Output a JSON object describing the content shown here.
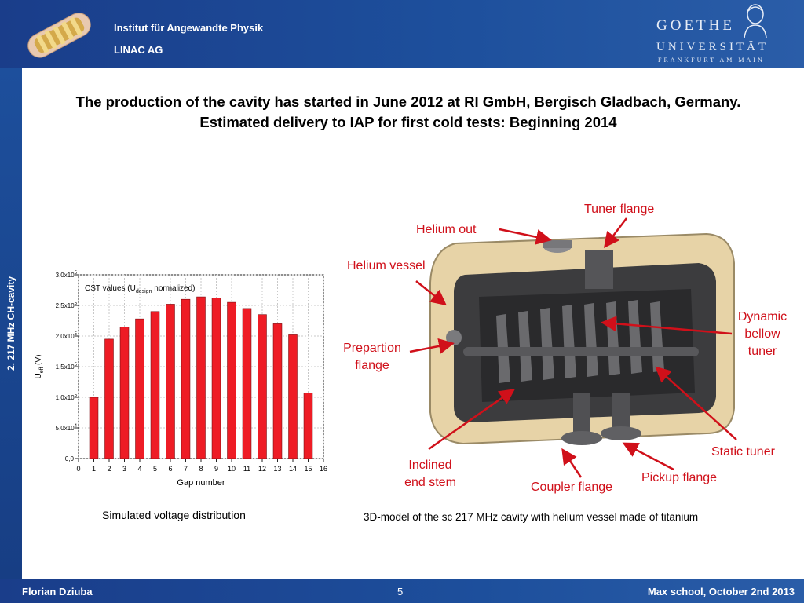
{
  "header": {
    "institute": "Institut für Angewandte Physik",
    "group": "LINAC AG",
    "university_name": "GOETHE",
    "university_word": "UNIVERSITÄT",
    "university_city": "FRANKFURT AM MAIN"
  },
  "sidebar": {
    "label": "2. 217 MHz CH-cavity"
  },
  "title": {
    "line1": "The production of the cavity has started in June 2012 at RI GmbH, Bergisch Gladbach, Germany.",
    "line2": "Estimated delivery to IAP for first cold tests: Beginning 2014"
  },
  "chart_data": {
    "type": "bar",
    "legend": "CST values (U",
    "legend_sub": "design",
    "legend_tail": " normalized)",
    "xlabel": "Gap number",
    "ylabel_main": "U",
    "ylabel_sub": "eff",
    "ylabel_unit": " (V)",
    "x": [
      1,
      2,
      3,
      4,
      5,
      6,
      7,
      8,
      9,
      10,
      11,
      12,
      13,
      14,
      15
    ],
    "values": [
      100000,
      195000,
      215000,
      228000,
      240000,
      252000,
      260000,
      264000,
      262000,
      255000,
      245000,
      235000,
      220000,
      202000,
      107000
    ],
    "xlim": [
      0,
      16
    ],
    "ylim": [
      0,
      300000
    ],
    "xticks": [
      "0",
      "1",
      "2",
      "3",
      "4",
      "5",
      "6",
      "7",
      "8",
      "9",
      "10",
      "11",
      "12",
      "13",
      "14",
      "15",
      "16"
    ],
    "yticks": [
      {
        "value": 0,
        "base": "0,0",
        "exp": ""
      },
      {
        "value": 50000,
        "base": "5,0x10",
        "exp": "4"
      },
      {
        "value": 100000,
        "base": "1,0x10",
        "exp": "5"
      },
      {
        "value": 150000,
        "base": "1,5x10",
        "exp": "5"
      },
      {
        "value": 200000,
        "base": "2,0x10",
        "exp": "5"
      },
      {
        "value": 250000,
        "base": "2,5x10",
        "exp": "5"
      },
      {
        "value": 300000,
        "base": "3,0x10",
        "exp": "5"
      }
    ],
    "bar_color": "#ee1c25",
    "grid": true
  },
  "captions": {
    "left": "Simulated voltage distribution",
    "right": "3D-model of the sc 217 MHz cavity with helium vessel made of titanium"
  },
  "labels": {
    "tuner_flange": "Tuner flange",
    "helium_out": "Helium out",
    "helium_vessel": "Helium vessel",
    "dynamic_bellow_tuner": [
      "Dynamic",
      "bellow",
      "tuner"
    ],
    "prepartion_flange": [
      "Prepartion",
      "flange"
    ],
    "static_tuner": "Static tuner",
    "inclined_end_stem": [
      "Inclined",
      "end stem"
    ],
    "pickup_flange": "Pickup flange",
    "coupler_flange": "Coupler flange"
  },
  "colors": {
    "header_blue": "#1d4f9c",
    "annotation_red": "#d0101a"
  },
  "footer": {
    "author": "Florian Dziuba",
    "page": "5",
    "event": "Max school, October 2nd 2013"
  }
}
